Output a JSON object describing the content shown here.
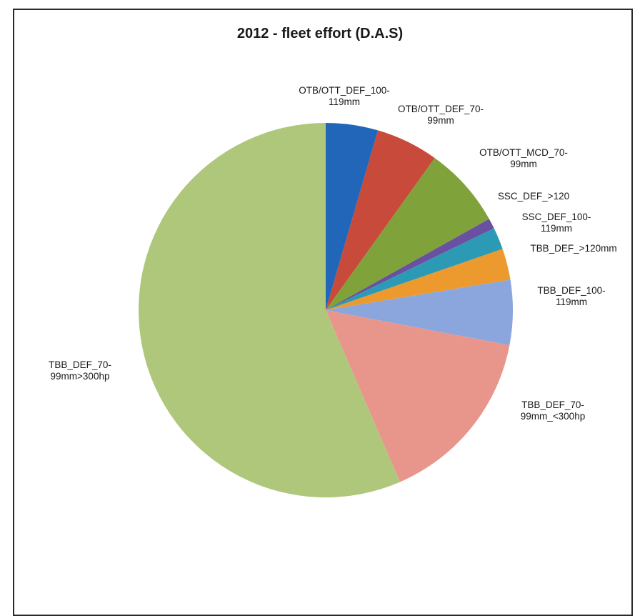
{
  "chart_data": {
    "type": "pie",
    "title": "2012 - fleet effort (D.A.S)",
    "slices": [
      {
        "label": "OTB/OTT_DEF_100-119mm",
        "lines": [
          "OTB/OTT_DEF_100-",
          "119mm"
        ],
        "value": 4.5,
        "color": "#2166b8"
      },
      {
        "label": "OTB/OTT_DEF_70-99mm",
        "lines": [
          "OTB/OTT_DEF_70-",
          "99mm"
        ],
        "value": 5.4,
        "color": "#c74a3a"
      },
      {
        "label": "OTB/OTT_MCD_70-99mm",
        "lines": [
          "OTB/OTT_MCD_70-",
          "99mm"
        ],
        "value": 7.0,
        "color": "#7fa33a"
      },
      {
        "label": "SSC_DEF_>120",
        "lines": [
          "SSC_DEF_>120"
        ],
        "value": 0.9,
        "color": "#6a50a0"
      },
      {
        "label": "SSC_DEF_100-119mm",
        "lines": [
          "SSC_DEF_100-",
          "119mm"
        ],
        "value": 1.9,
        "color": "#2d9ab5"
      },
      {
        "label": "TBB_DEF_>120mm",
        "lines": [
          "TBB_DEF_>120mm"
        ],
        "value": 2.7,
        "color": "#ec9a2e"
      },
      {
        "label": "TBB_DEF_100-119mm",
        "lines": [
          "TBB_DEF_100-",
          "119mm"
        ],
        "value": 5.6,
        "color": "#8aa6dc"
      },
      {
        "label": "TBB_DEF_70-99mm_<300hp",
        "lines": [
          "TBB_DEF_70-",
          "99mm_<300hp"
        ],
        "value": 15.5,
        "color": "#e8968c"
      },
      {
        "label": "TBB_DEF_70-99mm>300hp",
        "lines": [
          "TBB_DEF_70-",
          "99mm>300hp"
        ],
        "value": 56.5,
        "color": "#afc77a"
      }
    ],
    "start_angle_deg": 0,
    "direction": "clockwise",
    "legend": "none (category labels placed beside slices)"
  }
}
